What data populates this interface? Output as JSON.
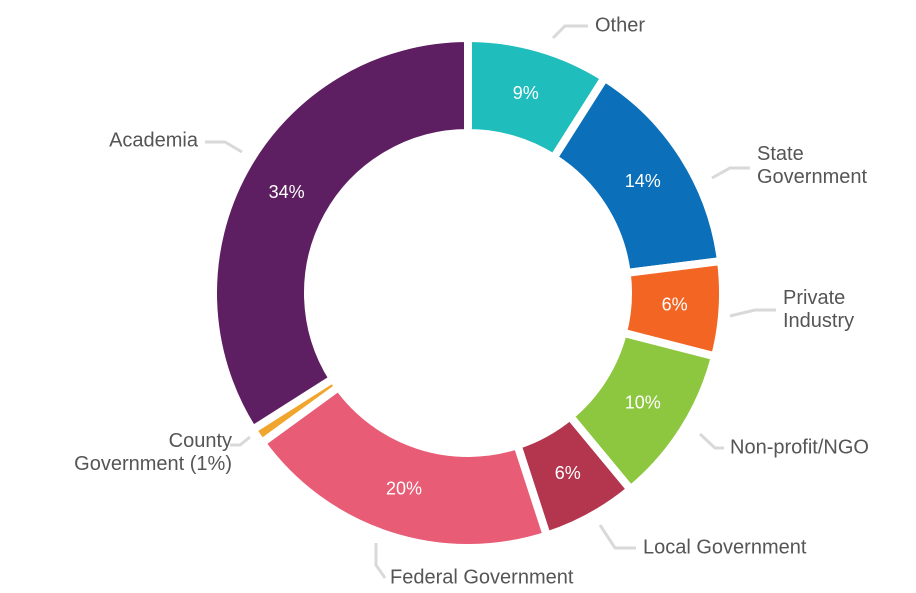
{
  "chart_data": {
    "type": "donut",
    "categories": [
      "Other",
      "State Government",
      "Private Industry",
      "Non-profit/NGO",
      "Local Government",
      "Federal Government",
      "County Government (1%)",
      "Academia"
    ],
    "values": [
      9,
      14,
      6,
      10,
      6,
      20,
      1,
      34
    ],
    "value_labels": [
      "9%",
      "14%",
      "6%",
      "10%",
      "6%",
      "20%",
      null,
      "34%"
    ],
    "colors": [
      "#1fbdbc",
      "#0b6fb9",
      "#f26522",
      "#8dc63f",
      "#b3364e",
      "#e85c76",
      "#f0a52c",
      "#5e1f62"
    ]
  }
}
